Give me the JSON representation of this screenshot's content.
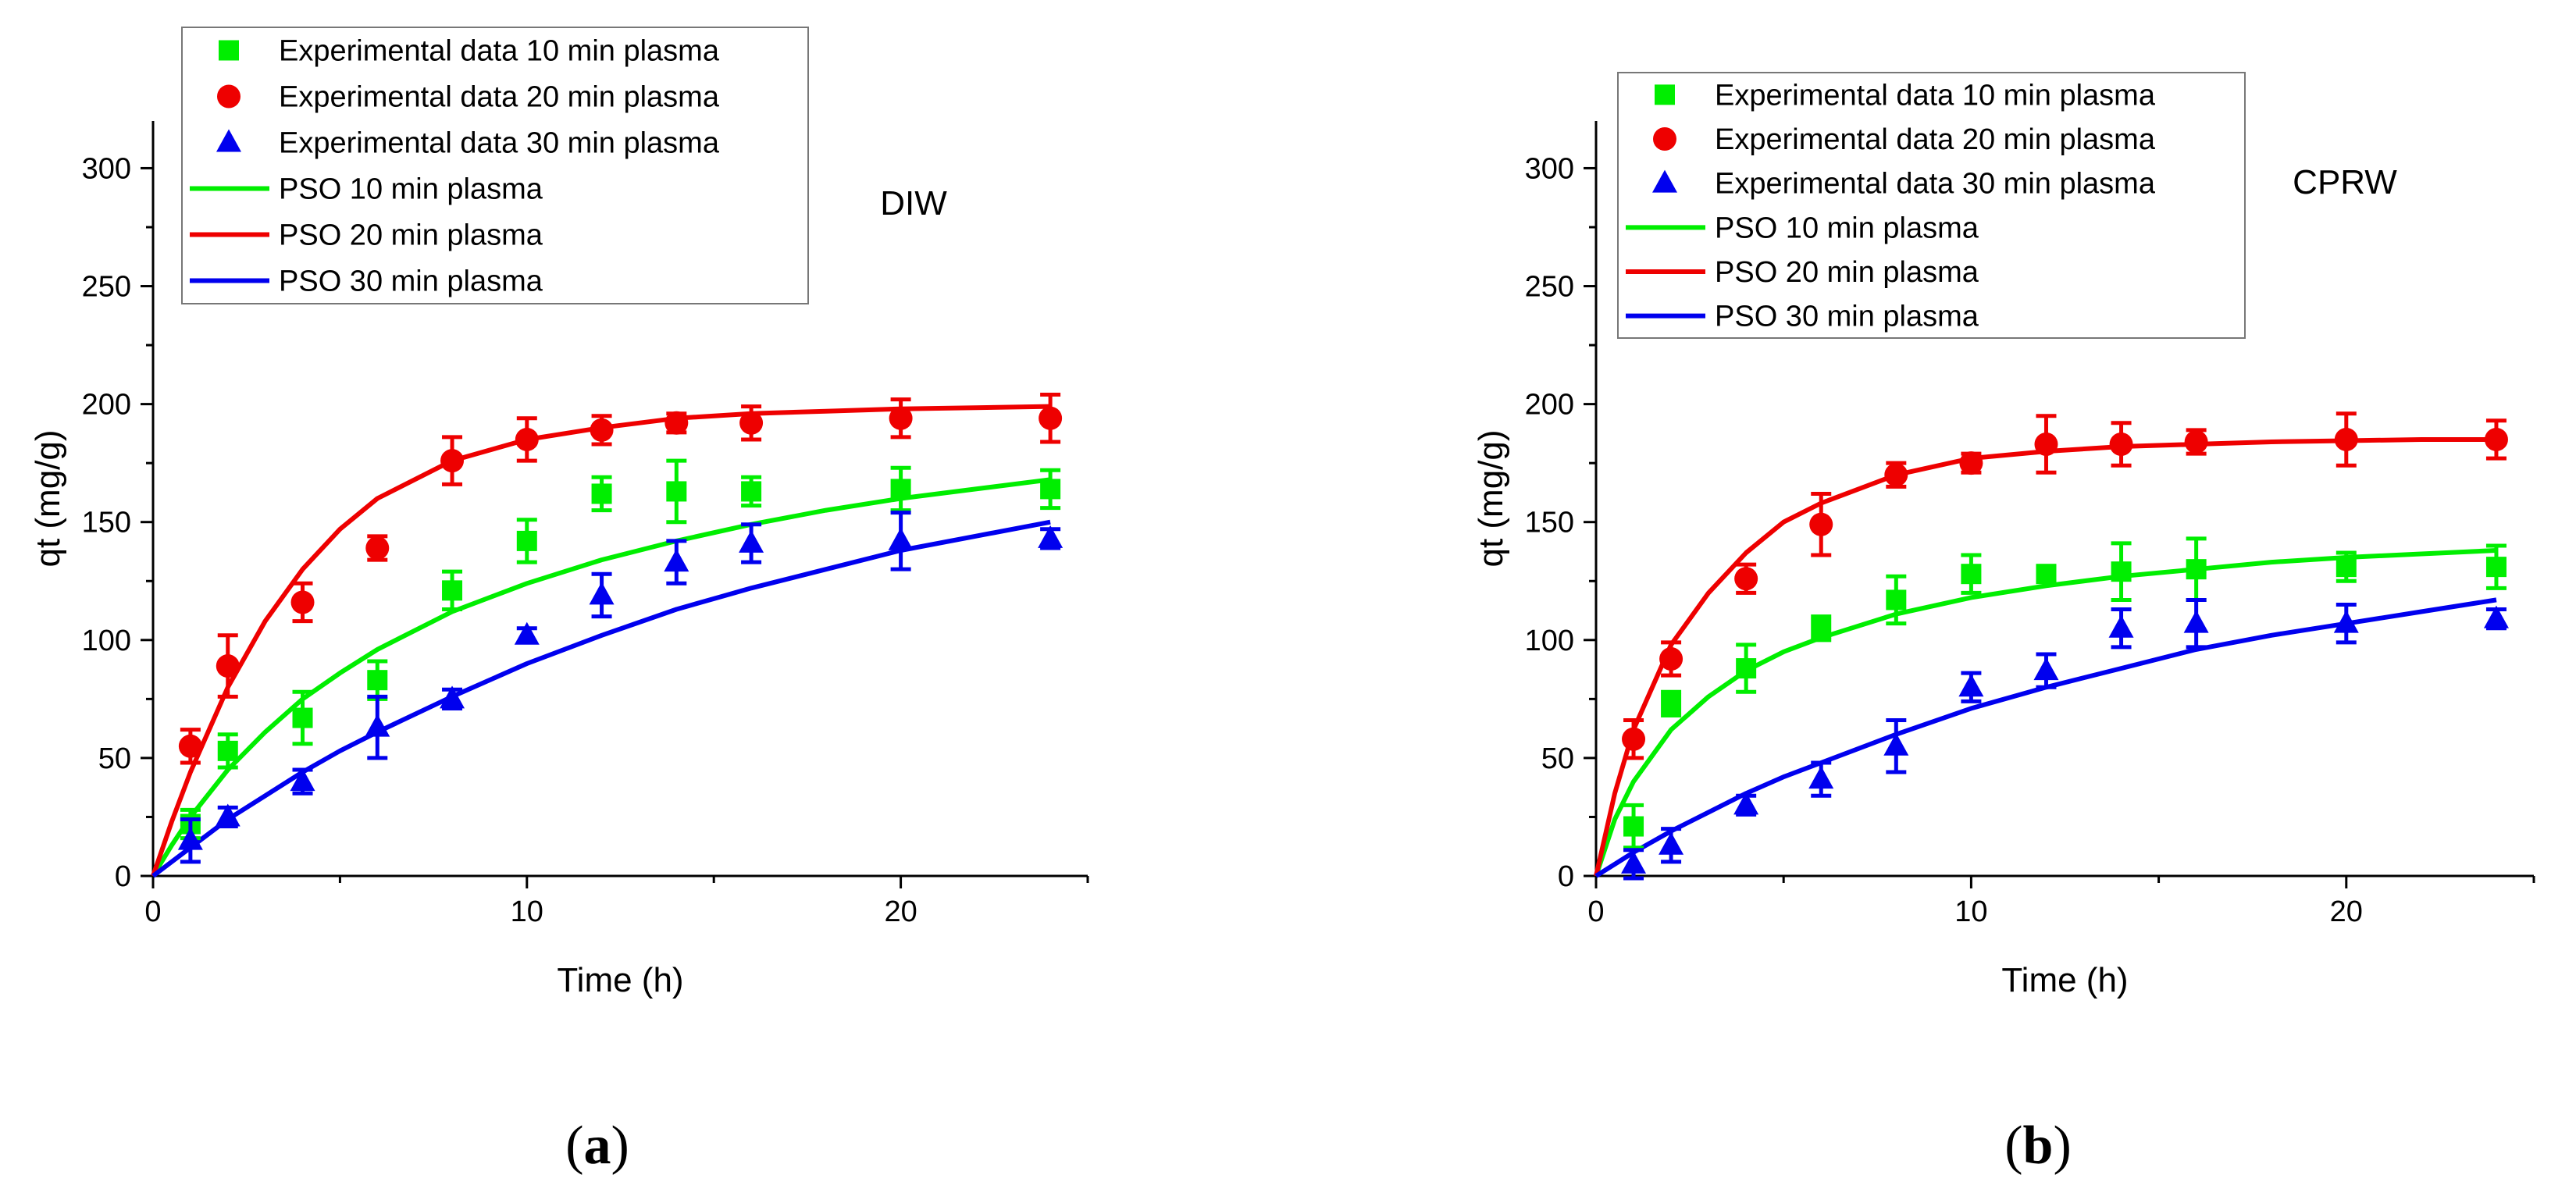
{
  "chart_data": [
    {
      "panel_caption": {
        "open": "(",
        "letter": "a",
        "close": ")"
      },
      "type": "scatter",
      "annotation": "DIW",
      "xlabel": "Time (h)",
      "ylabel": "qt (mg/g)",
      "xlim": [
        0,
        25
      ],
      "ylim": [
        0,
        320
      ],
      "xticks": [
        0,
        10,
        20
      ],
      "yticks": [
        0,
        50,
        100,
        150,
        200,
        250,
        300
      ],
      "series": [
        {
          "name": "Experimental data 10 min plasma",
          "kind": "points",
          "marker": "square",
          "color": "#00ee00",
          "x": [
            1,
            2,
            4,
            6,
            8,
            10,
            12,
            14,
            16,
            20,
            24
          ],
          "y": [
            22,
            53,
            67,
            83,
            121,
            142,
            162,
            163,
            163,
            164,
            164
          ],
          "err": [
            6,
            7,
            11,
            8,
            8,
            9,
            7,
            13,
            6,
            9,
            8
          ]
        },
        {
          "name": "Experimental data 20 min plasma",
          "kind": "points",
          "marker": "circle",
          "color": "#ee0000",
          "x": [
            1,
            2,
            4,
            6,
            8,
            10,
            12,
            14,
            16,
            20,
            24
          ],
          "y": [
            55,
            89,
            116,
            139,
            176,
            185,
            189,
            192,
            192,
            194,
            194
          ],
          "err": [
            7,
            13,
            8,
            5,
            10,
            9,
            6,
            4,
            7,
            8,
            10
          ]
        },
        {
          "name": "Experimental data 30 min plasma",
          "kind": "points",
          "marker": "triangle",
          "color": "#0000ee",
          "x": [
            1,
            2,
            4,
            6,
            8,
            10,
            12,
            14,
            16,
            20,
            24
          ],
          "y": [
            15,
            25,
            40,
            63,
            75,
            102,
            119,
            133,
            141,
            142,
            143
          ],
          "err": [
            9,
            4,
            5,
            13,
            4,
            3,
            9,
            9,
            8,
            12,
            4
          ]
        },
        {
          "name": "PSO 10 min plasma",
          "kind": "line",
          "color": "#00ee00",
          "x": [
            0,
            0.5,
            1,
            2,
            3,
            4,
            5,
            6,
            8,
            10,
            12,
            14,
            16,
            18,
            20,
            22,
            24
          ],
          "y": [
            0,
            13,
            25,
            45,
            61,
            75,
            86,
            96,
            112,
            124,
            134,
            142,
            149,
            155,
            160,
            164,
            168
          ]
        },
        {
          "name": "PSO 20 min plasma",
          "kind": "line",
          "color": "#ee0000",
          "x": [
            0,
            0.5,
            1,
            2,
            3,
            4,
            5,
            6,
            8,
            10,
            12,
            14,
            16,
            18,
            20,
            22,
            24
          ],
          "y": [
            0,
            23,
            44,
            80,
            108,
            130,
            147,
            160,
            176,
            185,
            190,
            194,
            196,
            197,
            198,
            198.5,
            199
          ]
        },
        {
          "name": "PSO 30 min plasma",
          "kind": "line",
          "color": "#0000ee",
          "x": [
            0,
            0.5,
            1,
            2,
            3,
            4,
            5,
            6,
            8,
            10,
            12,
            14,
            16,
            18,
            20,
            22,
            24
          ],
          "y": [
            0,
            6,
            12,
            24,
            34,
            44,
            53,
            61,
            76,
            90,
            102,
            113,
            122,
            130,
            138,
            144,
            150
          ]
        }
      ]
    },
    {
      "panel_caption": {
        "open": "(",
        "letter": "b",
        "close": ")"
      },
      "type": "scatter",
      "annotation": "CPRW",
      "xlabel": "Time (h)",
      "ylabel": "qt (mg/g)",
      "xlim": [
        0,
        25
      ],
      "ylim": [
        0,
        320
      ],
      "xticks": [
        0,
        10,
        20
      ],
      "yticks": [
        0,
        50,
        100,
        150,
        200,
        250,
        300
      ],
      "series": [
        {
          "name": "Experimental data 10 min plasma",
          "kind": "points",
          "marker": "square",
          "color": "#00ee00",
          "x": [
            1,
            2,
            4,
            6,
            8,
            10,
            12,
            14,
            16,
            20,
            24
          ],
          "y": [
            21,
            73,
            88,
            105,
            117,
            128,
            128,
            129,
            130,
            131,
            131
          ],
          "err": [
            9,
            5,
            10,
            5,
            10,
            8,
            3,
            12,
            13,
            6,
            9
          ]
        },
        {
          "name": "Experimental data 20 min plasma",
          "kind": "points",
          "marker": "circle",
          "color": "#ee0000",
          "x": [
            1,
            2,
            4,
            6,
            8,
            10,
            12,
            14,
            16,
            20,
            24
          ],
          "y": [
            58,
            92,
            126,
            149,
            170,
            175,
            183,
            183,
            184,
            185,
            185
          ],
          "err": [
            8,
            7,
            6,
            13,
            5,
            4,
            12,
            9,
            5,
            11,
            8
          ]
        },
        {
          "name": "Experimental data 30 min plasma",
          "kind": "points",
          "marker": "triangle",
          "color": "#0000ee",
          "x": [
            1,
            2,
            4,
            6,
            8,
            10,
            12,
            14,
            16,
            20,
            24
          ],
          "y": [
            5,
            13,
            30,
            41,
            55,
            80,
            87,
            105,
            107,
            107,
            109
          ],
          "err": [
            6,
            7,
            4,
            7,
            11,
            6,
            7,
            8,
            10,
            8,
            4
          ]
        },
        {
          "name": "PSO 10 min plasma",
          "kind": "line",
          "color": "#00ee00",
          "x": [
            0,
            0.5,
            1,
            2,
            3,
            4,
            5,
            6,
            8,
            10,
            12,
            14,
            16,
            18,
            20,
            22,
            24
          ],
          "y": [
            0,
            24,
            40,
            62,
            76,
            87,
            95,
            101,
            111,
            118,
            123,
            127,
            130,
            133,
            135,
            136.5,
            138
          ]
        },
        {
          "name": "PSO 20 min plasma",
          "kind": "line",
          "color": "#ee0000",
          "x": [
            0,
            0.5,
            1,
            2,
            3,
            4,
            5,
            6,
            8,
            10,
            12,
            14,
            16,
            18,
            20,
            22,
            24
          ],
          "y": [
            0,
            35,
            62,
            98,
            120,
            137,
            150,
            158,
            170,
            177,
            180,
            182,
            183,
            184,
            184.5,
            185,
            185
          ]
        },
        {
          "name": "PSO 30 min plasma",
          "kind": "line",
          "color": "#0000ee",
          "x": [
            0,
            0.5,
            1,
            2,
            3,
            4,
            5,
            6,
            8,
            10,
            12,
            14,
            16,
            18,
            20,
            22,
            24
          ],
          "y": [
            0,
            5,
            10,
            19,
            27,
            35,
            42,
            48,
            60,
            71,
            80,
            88,
            96,
            102,
            107,
            112,
            117
          ]
        }
      ]
    }
  ]
}
